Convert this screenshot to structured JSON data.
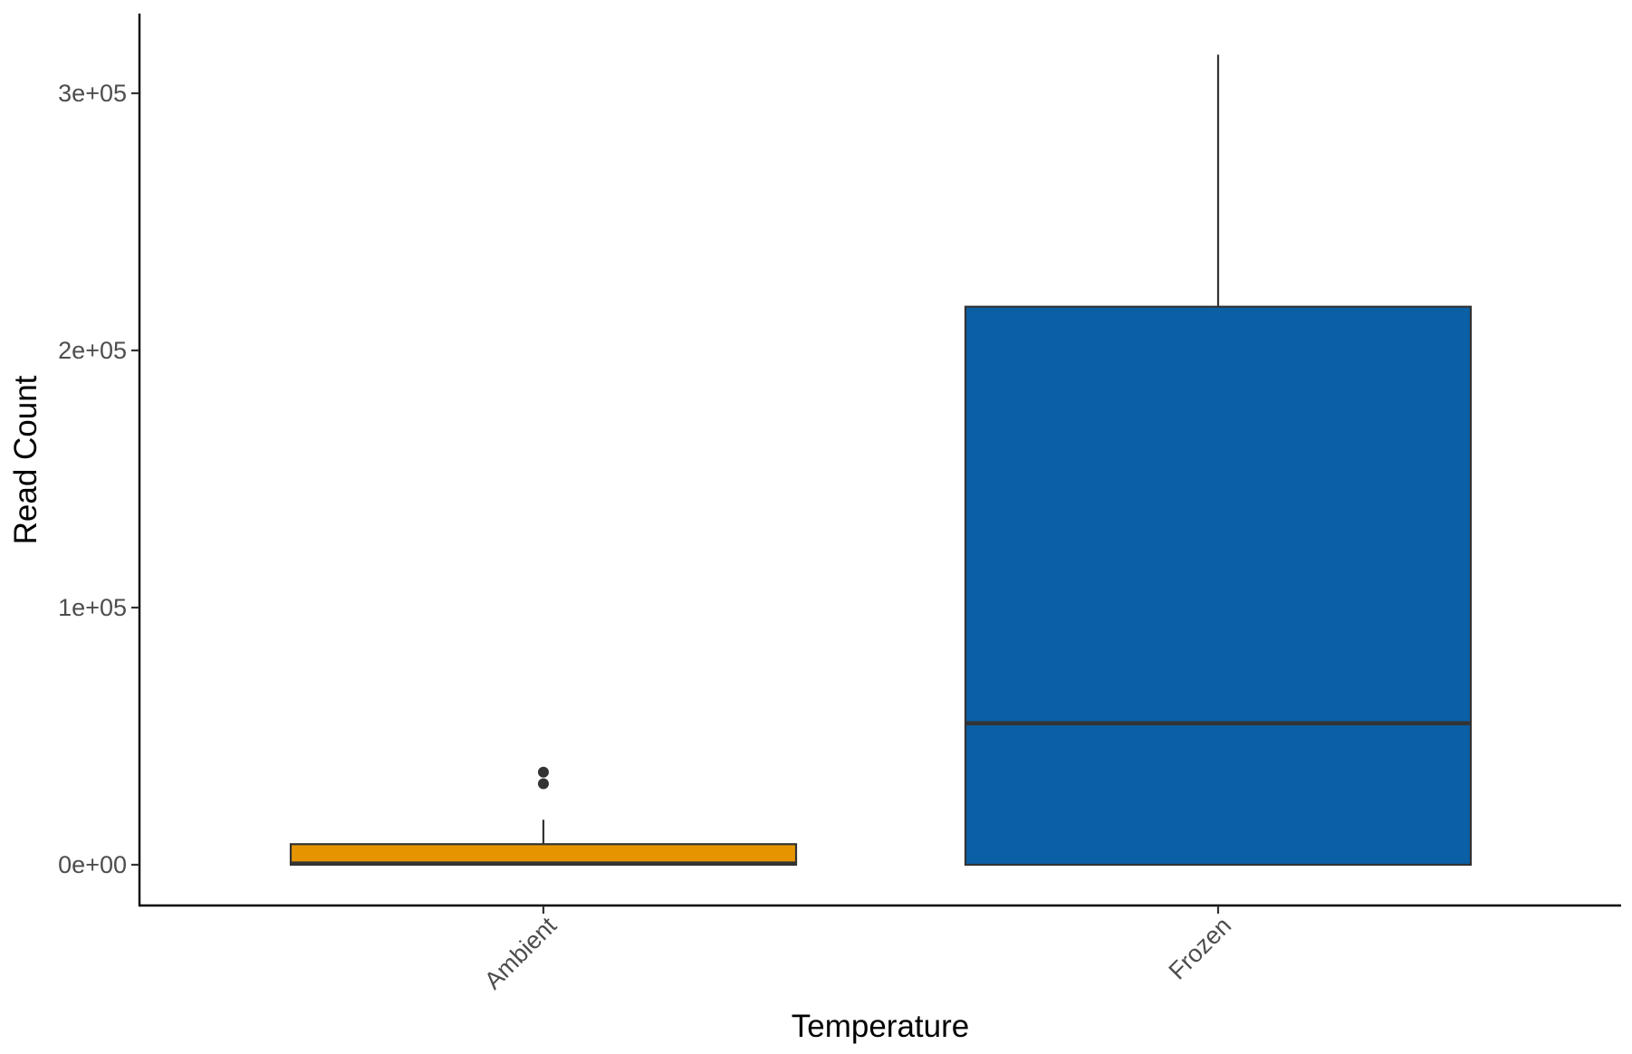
{
  "chart_data": {
    "type": "boxplot",
    "xlabel": "Temperature",
    "ylabel": "Read Count",
    "categories": [
      "Ambient",
      "Frozen"
    ],
    "y_ticks": [
      {
        "value": 0,
        "label": "0e+00"
      },
      {
        "value": 100000,
        "label": "1e+05"
      },
      {
        "value": 200000,
        "label": "2e+05"
      },
      {
        "value": 300000,
        "label": "3e+05"
      }
    ],
    "ylim": [
      -16000,
      330000
    ],
    "grid": false,
    "legend": "none",
    "boxes": [
      {
        "category": "Ambient",
        "color": "#E69500",
        "whisker_low": 0,
        "q1": 0,
        "median": 500,
        "q3": 8000,
        "whisker_high": 17500,
        "outliers": [
          31500,
          36000
        ]
      },
      {
        "category": "Frozen",
        "color": "#0B5FA5",
        "whisker_low": 0,
        "q1": 0,
        "median": 55000,
        "q3": 217000,
        "whisker_high": 315000,
        "outliers": []
      }
    ]
  }
}
